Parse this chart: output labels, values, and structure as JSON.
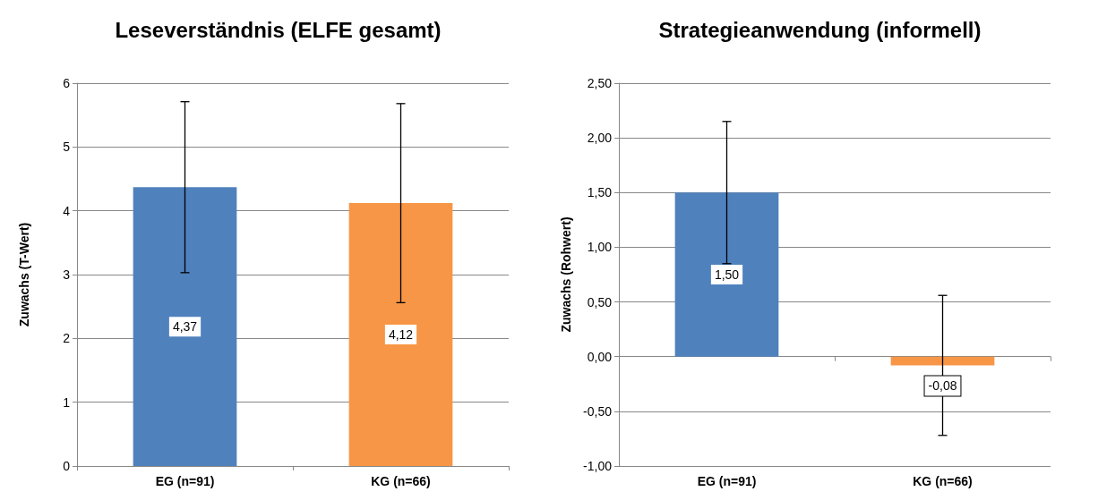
{
  "chart_data": [
    {
      "type": "bar",
      "title": "Leseverständnis (ELFE gesamt)",
      "ylabel": "Zuwachs (T-Wert)",
      "categories": [
        "EG (n=91)",
        "KG (n=66)"
      ],
      "values": [
        4.37,
        4.12
      ],
      "colors": [
        "#4f81bd",
        "#f79646"
      ],
      "errors": [
        1.34,
        1.56
      ],
      "value_labels": [
        "4,37",
        "4,12"
      ],
      "ylim": [
        0,
        6
      ],
      "yticks": [
        0,
        1,
        2,
        3,
        4,
        5,
        6
      ],
      "grid": "y"
    },
    {
      "type": "bar",
      "title": "Strategieanwendung (informell)",
      "ylabel": "Zuwachs (Rohwert)",
      "categories": [
        "EG (n=91)",
        "KG (n=66)"
      ],
      "values": [
        1.5,
        -0.08
      ],
      "colors": [
        "#4f81bd",
        "#f79646"
      ],
      "errors": [
        0.65,
        0.64
      ],
      "value_labels": [
        "1,50",
        "-0,08"
      ],
      "ylim": [
        -1,
        2.5
      ],
      "yticks": [
        {
          "value": -1,
          "label": "-1,00"
        },
        {
          "value": -0.5,
          "label": "-0,50"
        },
        {
          "value": 0,
          "label": "0,00"
        },
        {
          "value": 0.5,
          "label": "0,50"
        },
        {
          "value": 1,
          "label": "1,00"
        },
        {
          "value": 1.5,
          "label": "1,50"
        },
        {
          "value": 2,
          "label": "2,00"
        },
        {
          "value": 2.5,
          "label": "2,50"
        }
      ],
      "grid": "y"
    }
  ]
}
